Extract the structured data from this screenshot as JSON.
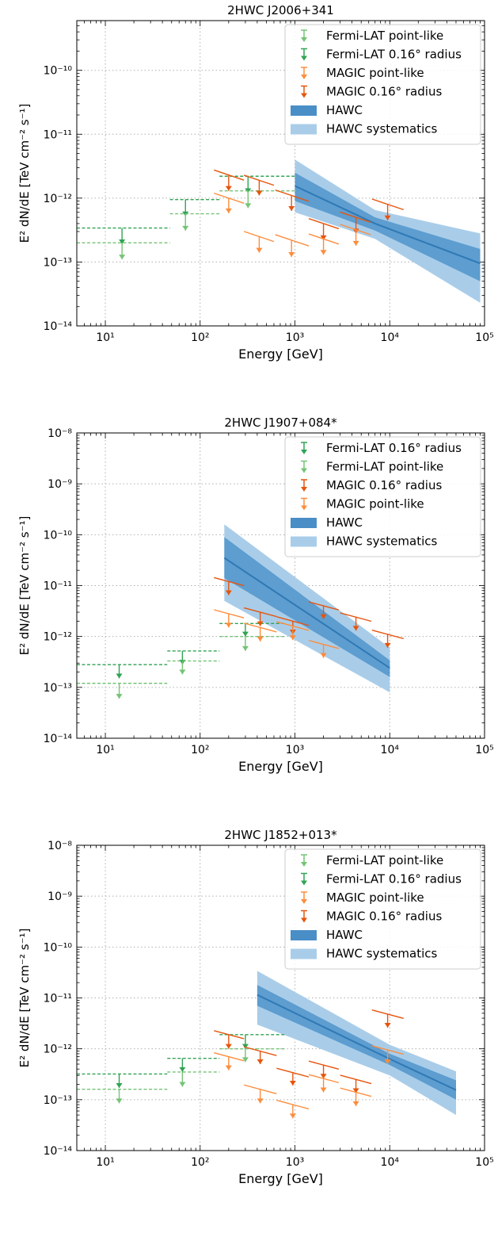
{
  "chart_data": [
    {
      "type": "line",
      "title": "2HWC J2006+341",
      "xlabel": "Energy [GeV]",
      "ylabel": "E² dN/dE [TeV cm⁻² s⁻¹]",
      "xscale": "log",
      "yscale": "log",
      "xlim": [
        5,
        100000
      ],
      "ylim": [
        1e-14,
        6e-10
      ],
      "x_ticks": [
        "10¹",
        "10²",
        "10³",
        "10⁴",
        "10⁵"
      ],
      "y_ticks": [
        "10⁻¹⁴",
        "10⁻¹³",
        "10⁻¹²",
        "10⁻¹¹",
        "10⁻¹⁰"
      ],
      "grid": true,
      "legend_position": "top-right",
      "legend": [
        {
          "label": "Fermi-LAT point-like",
          "kind": "ul",
          "color": "#74c476"
        },
        {
          "label": "Fermi-LAT 0.16° radius",
          "kind": "ul",
          "color": "#31a354"
        },
        {
          "label": "MAGIC point-like",
          "kind": "ul",
          "color": "#fd8d3c"
        },
        {
          "label": "MAGIC 0.16° radius",
          "kind": "ul",
          "color": "#e6550d"
        },
        {
          "label": "HAWC",
          "kind": "band",
          "color": "#4a8ec7"
        },
        {
          "label": "HAWC systematics",
          "kind": "band",
          "color": "#a9cde9"
        }
      ],
      "upper_limits": [
        {
          "series": "Fermi-LAT 0.16° radius",
          "color": "#31a354",
          "dashed": true,
          "x": 15,
          "x_range": [
            5,
            48
          ],
          "y": 3.4e-13,
          "y_arrow": 1.9e-13
        },
        {
          "series": "Fermi-LAT point-like",
          "color": "#74c476",
          "dashed": true,
          "x": 15,
          "x_range": [
            5,
            48
          ],
          "y": 2e-13,
          "y_arrow": 1.1e-13
        },
        {
          "series": "Fermi-LAT 0.16° radius",
          "color": "#31a354",
          "dashed": true,
          "x": 70,
          "x_range": [
            48,
            160
          ],
          "y": 9.5e-13,
          "y_arrow": 5.2e-13
        },
        {
          "series": "Fermi-LAT point-like",
          "color": "#74c476",
          "dashed": true,
          "x": 70,
          "x_range": [
            48,
            160
          ],
          "y": 5.7e-13,
          "y_arrow": 3.1e-13
        },
        {
          "series": "Fermi-LAT 0.16° radius",
          "color": "#31a354",
          "dashed": true,
          "x": 320,
          "x_range": [
            160,
            1000
          ],
          "y": 2.2e-12,
          "y_arrow": 1.2e-12
        },
        {
          "series": "Fermi-LAT point-like",
          "color": "#74c476",
          "dashed": true,
          "x": 320,
          "x_range": [
            160,
            1000
          ],
          "y": 1.3e-12,
          "y_arrow": 7e-13
        },
        {
          "series": "MAGIC 0.16° radius",
          "color": "#e6550d",
          "x": 200,
          "x_range": [
            140,
            290
          ],
          "y": 2.3e-12,
          "y_arrow": 1.3e-12
        },
        {
          "series": "MAGIC point-like",
          "color": "#fd8d3c",
          "x": 200,
          "x_range": [
            140,
            290
          ],
          "y": 1e-12,
          "y_arrow": 5.8e-13
        },
        {
          "series": "MAGIC 0.16° radius",
          "color": "#e6550d",
          "x": 420,
          "x_range": [
            290,
            600
          ],
          "y": 1.9e-12,
          "y_arrow": 1.1e-12
        },
        {
          "series": "MAGIC point-like",
          "color": "#fd8d3c",
          "x": 420,
          "x_range": [
            290,
            600
          ],
          "y": 2.5e-13,
          "y_arrow": 1.4e-13
        },
        {
          "series": "MAGIC 0.16° radius",
          "color": "#e6550d",
          "x": 920,
          "x_range": [
            620,
            1400
          ],
          "y": 1.1e-12,
          "y_arrow": 6.3e-13
        },
        {
          "series": "MAGIC point-like",
          "color": "#fd8d3c",
          "x": 920,
          "x_range": [
            620,
            1400
          ],
          "y": 2.2e-13,
          "y_arrow": 1.2e-13
        },
        {
          "series": "MAGIC 0.16° radius",
          "color": "#e6550d",
          "x": 2000,
          "x_range": [
            1400,
            2900
          ],
          "y": 4e-13,
          "y_arrow": 2.2e-13
        },
        {
          "series": "MAGIC point-like",
          "color": "#fd8d3c",
          "x": 2000,
          "x_range": [
            1400,
            2900
          ],
          "y": 2.3e-13,
          "y_arrow": 1.3e-13
        },
        {
          "series": "MAGIC 0.16° radius",
          "color": "#e6550d",
          "x": 4400,
          "x_range": [
            3000,
            6300
          ],
          "y": 5e-13,
          "y_arrow": 2.8e-13
        },
        {
          "series": "MAGIC point-like",
          "color": "#fd8d3c",
          "x": 4400,
          "x_range": [
            3000,
            6300
          ],
          "y": 3.2e-13,
          "y_arrow": 1.8e-13
        },
        {
          "series": "MAGIC 0.16° radius",
          "color": "#e6550d",
          "x": 9500,
          "x_range": [
            6500,
            14000
          ],
          "y": 8e-13,
          "y_arrow": 4.5e-13
        }
      ],
      "hawc": {
        "x": [
          1000,
          7000,
          90000
        ],
        "y": [
          1.55e-12,
          4e-13,
          9.5e-14
        ],
        "stat_lo": [
          9e-13,
          3.1e-13,
          5e-14
        ],
        "stat_hi": [
          2.5e-12,
          5e-13,
          1.6e-13
        ],
        "sys_lo": [
          6e-13,
          2.3e-13,
          2.3e-14
        ],
        "sys_hi": [
          4e-12,
          6.5e-13,
          2.8e-13
        ]
      }
    },
    {
      "type": "line",
      "title": "2HWC J1907+084*",
      "xlabel": "Energy [GeV]",
      "ylabel": "E² dN/dE [TeV cm⁻² s⁻¹]",
      "xscale": "log",
      "yscale": "log",
      "xlim": [
        5,
        100000
      ],
      "ylim": [
        1e-14,
        1e-08
      ],
      "x_ticks": [
        "10¹",
        "10²",
        "10³",
        "10⁴",
        "10⁵"
      ],
      "y_ticks": [
        "10⁻¹⁴",
        "10⁻¹³",
        "10⁻¹²",
        "10⁻¹¹",
        "10⁻¹⁰",
        "10⁻⁹",
        "10⁻⁸"
      ],
      "grid": true,
      "legend_position": "top-right",
      "legend": [
        {
          "label": "Fermi-LAT 0.16° radius",
          "kind": "ul",
          "color": "#31a354"
        },
        {
          "label": "Fermi-LAT point-like",
          "kind": "ul",
          "color": "#74c476"
        },
        {
          "label": "MAGIC 0.16° radius",
          "kind": "ul",
          "color": "#e6550d"
        },
        {
          "label": "MAGIC point-like",
          "kind": "ul",
          "color": "#fd8d3c"
        },
        {
          "label": "HAWC",
          "kind": "band",
          "color": "#4a8ec7"
        },
        {
          "label": "HAWC systematics",
          "kind": "band",
          "color": "#a9cde9"
        }
      ],
      "upper_limits": [
        {
          "series": "Fermi-LAT 0.16° radius",
          "color": "#31a354",
          "dashed": true,
          "x": 14,
          "x_range": [
            5,
            45
          ],
          "y": 2.8e-13,
          "y_arrow": 1.5e-13
        },
        {
          "series": "Fermi-LAT point-like",
          "color": "#74c476",
          "dashed": true,
          "x": 14,
          "x_range": [
            5,
            45
          ],
          "y": 1.2e-13,
          "y_arrow": 6e-14
        },
        {
          "series": "Fermi-LAT 0.16° radius",
          "color": "#31a354",
          "dashed": true,
          "x": 65,
          "x_range": [
            45,
            160
          ],
          "y": 5.2e-13,
          "y_arrow": 2.8e-13
        },
        {
          "series": "Fermi-LAT point-like",
          "color": "#74c476",
          "dashed": true,
          "x": 65,
          "x_range": [
            45,
            160
          ],
          "y": 3.3e-13,
          "y_arrow": 1.8e-13
        },
        {
          "series": "Fermi-LAT 0.16° radius",
          "color": "#31a354",
          "dashed": true,
          "x": 300,
          "x_range": [
            160,
            800
          ],
          "y": 1.8e-12,
          "y_arrow": 1e-12
        },
        {
          "series": "Fermi-LAT point-like",
          "color": "#74c476",
          "dashed": true,
          "x": 300,
          "x_range": [
            160,
            800
          ],
          "y": 1e-12,
          "y_arrow": 5.2e-13
        },
        {
          "series": "MAGIC 0.16° radius",
          "color": "#e6550d",
          "x": 200,
          "x_range": [
            140,
            290
          ],
          "y": 1.2e-11,
          "y_arrow": 6.5e-12
        },
        {
          "series": "MAGIC point-like",
          "color": "#fd8d3c",
          "x": 200,
          "x_range": [
            140,
            290
          ],
          "y": 2.8e-12,
          "y_arrow": 1.5e-12
        },
        {
          "series": "MAGIC 0.16° radius",
          "color": "#e6550d",
          "x": 430,
          "x_range": [
            290,
            640
          ],
          "y": 3e-12,
          "y_arrow": 1.6e-12
        },
        {
          "series": "MAGIC point-like",
          "color": "#fd8d3c",
          "x": 430,
          "x_range": [
            290,
            640
          ],
          "y": 1.5e-12,
          "y_arrow": 8e-13
        },
        {
          "series": "MAGIC 0.16° radius",
          "color": "#e6550d",
          "x": 950,
          "x_range": [
            640,
            1400
          ],
          "y": 2e-12,
          "y_arrow": 1.1e-12
        },
        {
          "series": "MAGIC point-like",
          "color": "#fd8d3c",
          "x": 950,
          "x_range": [
            640,
            1400
          ],
          "y": 1.6e-12,
          "y_arrow": 8.5e-13
        },
        {
          "series": "MAGIC 0.16° radius",
          "color": "#e6550d",
          "x": 2000,
          "x_range": [
            1400,
            2900
          ],
          "y": 4e-12,
          "y_arrow": 2.2e-12
        },
        {
          "series": "MAGIC point-like",
          "color": "#fd8d3c",
          "x": 2000,
          "x_range": [
            1400,
            2900
          ],
          "y": 7e-13,
          "y_arrow": 3.8e-13
        },
        {
          "series": "MAGIC 0.16° radius",
          "color": "#e6550d",
          "x": 4400,
          "x_range": [
            3000,
            6400
          ],
          "y": 2.4e-12,
          "y_arrow": 1.3e-12
        },
        {
          "series": "MAGIC 0.16° radius",
          "color": "#e6550d",
          "x": 9500,
          "x_range": [
            6500,
            14000
          ],
          "y": 1.1e-12,
          "y_arrow": 6e-13
        }
      ],
      "hawc": {
        "x": [
          180,
          10000
        ],
        "y": [
          3.5e-11,
          2.4e-13
        ],
        "stat_lo": [
          1.4e-11,
          1.6e-13
        ],
        "stat_hi": [
          9e-11,
          3.4e-13
        ],
        "sys_lo": [
          5e-12,
          8e-14
        ],
        "sys_hi": [
          1.6e-10,
          6e-13
        ]
      }
    },
    {
      "type": "line",
      "title": "2HWC J1852+013*",
      "xlabel": "Energy [GeV]",
      "ylabel": "E² dN/dE [TeV cm⁻² s⁻¹]",
      "xscale": "log",
      "yscale": "log",
      "xlim": [
        5,
        100000
      ],
      "ylim": [
        1e-14,
        1e-08
      ],
      "x_ticks": [
        "10¹",
        "10²",
        "10³",
        "10⁴",
        "10⁵"
      ],
      "y_ticks": [
        "10⁻¹⁴",
        "10⁻¹³",
        "10⁻¹²",
        "10⁻¹¹",
        "10⁻¹⁰",
        "10⁻⁹",
        "10⁻⁸"
      ],
      "grid": true,
      "legend_position": "top-right",
      "legend": [
        {
          "label": "Fermi-LAT point-like",
          "kind": "ul",
          "color": "#74c476"
        },
        {
          "label": "Fermi-LAT 0.16° radius",
          "kind": "ul",
          "color": "#31a354"
        },
        {
          "label": "MAGIC point-like",
          "kind": "ul",
          "color": "#fd8d3c"
        },
        {
          "label": "MAGIC 0.16° radius",
          "kind": "ul",
          "color": "#e6550d"
        },
        {
          "label": "HAWC",
          "kind": "band",
          "color": "#4a8ec7"
        },
        {
          "label": "HAWC systematics",
          "kind": "band",
          "color": "#a9cde9"
        }
      ],
      "upper_limits": [
        {
          "series": "Fermi-LAT 0.16° radius",
          "color": "#31a354",
          "dashed": true,
          "x": 14,
          "x_range": [
            5,
            45
          ],
          "y": 3.2e-13,
          "y_arrow": 1.7e-13
        },
        {
          "series": "Fermi-LAT point-like",
          "color": "#74c476",
          "dashed": true,
          "x": 14,
          "x_range": [
            5,
            45
          ],
          "y": 1.6e-13,
          "y_arrow": 8.5e-14
        },
        {
          "series": "Fermi-LAT 0.16° radius",
          "color": "#31a354",
          "dashed": true,
          "x": 65,
          "x_range": [
            45,
            160
          ],
          "y": 6.5e-13,
          "y_arrow": 3.5e-13
        },
        {
          "series": "Fermi-LAT point-like",
          "color": "#74c476",
          "dashed": true,
          "x": 65,
          "x_range": [
            45,
            160
          ],
          "y": 3.5e-13,
          "y_arrow": 1.8e-13
        },
        {
          "series": "Fermi-LAT 0.16° radius",
          "color": "#31a354",
          "dashed": true,
          "x": 300,
          "x_range": [
            160,
            800
          ],
          "y": 1.9e-12,
          "y_arrow": 1e-12
        },
        {
          "series": "Fermi-LAT point-like",
          "color": "#74c476",
          "dashed": true,
          "x": 300,
          "x_range": [
            160,
            800
          ],
          "y": 1e-12,
          "y_arrow": 5.5e-13
        },
        {
          "series": "MAGIC 0.16° radius",
          "color": "#e6550d",
          "x": 200,
          "x_range": [
            140,
            290
          ],
          "y": 1.9e-12,
          "y_arrow": 1e-12
        },
        {
          "series": "MAGIC point-like",
          "color": "#fd8d3c",
          "x": 200,
          "x_range": [
            140,
            290
          ],
          "y": 7e-13,
          "y_arrow": 3.8e-13
        },
        {
          "series": "MAGIC 0.16° radius",
          "color": "#e6550d",
          "x": 430,
          "x_range": [
            290,
            640
          ],
          "y": 9e-13,
          "y_arrow": 5e-13
        },
        {
          "series": "MAGIC point-like",
          "color": "#fd8d3c",
          "x": 430,
          "x_range": [
            290,
            640
          ],
          "y": 1.6e-13,
          "y_arrow": 8.5e-14
        },
        {
          "series": "MAGIC 0.16° radius",
          "color": "#e6550d",
          "x": 950,
          "x_range": [
            640,
            1400
          ],
          "y": 3.4e-13,
          "y_arrow": 1.9e-13
        },
        {
          "series": "MAGIC point-like",
          "color": "#fd8d3c",
          "x": 950,
          "x_range": [
            640,
            1400
          ],
          "y": 8e-14,
          "y_arrow": 4.3e-14
        },
        {
          "series": "MAGIC 0.16° radius",
          "color": "#e6550d",
          "x": 2000,
          "x_range": [
            1400,
            2900
          ],
          "y": 4.8e-13,
          "y_arrow": 2.6e-13
        },
        {
          "series": "MAGIC point-like",
          "color": "#fd8d3c",
          "x": 2000,
          "x_range": [
            1400,
            2900
          ],
          "y": 2.6e-13,
          "y_arrow": 1.4e-13
        },
        {
          "series": "MAGIC 0.16° radius",
          "color": "#e6550d",
          "x": 4400,
          "x_range": [
            3000,
            6400
          ],
          "y": 2.5e-13,
          "y_arrow": 1.35e-13
        },
        {
          "series": "MAGIC point-like",
          "color": "#fd8d3c",
          "x": 4400,
          "x_range": [
            3000,
            6400
          ],
          "y": 1.4e-13,
          "y_arrow": 7.5e-14
        },
        {
          "series": "MAGIC 0.16° radius",
          "color": "#e6550d",
          "x": 9500,
          "x_range": [
            6500,
            14000
          ],
          "y": 4.8e-12,
          "y_arrow": 2.6e-12
        },
        {
          "series": "MAGIC point-like",
          "color": "#fd8d3c",
          "x": 9500,
          "x_range": [
            6500,
            14000
          ],
          "y": 9.5e-13,
          "y_arrow": 5e-13
        }
      ],
      "hawc": {
        "x": [
          400,
          10000,
          50000
        ],
        "y": [
          1.15e-11,
          6.3e-13,
          1.55e-13
        ],
        "stat_lo": [
          7e-12,
          4.8e-13,
          1e-13
        ],
        "stat_hi": [
          1.8e-11,
          8e-13,
          2.4e-13
        ],
        "sys_lo": [
          3e-12,
          3e-13,
          5e-14
        ],
        "sys_hi": [
          3.4e-11,
          1.2e-12,
          3.6e-13
        ]
      }
    }
  ]
}
